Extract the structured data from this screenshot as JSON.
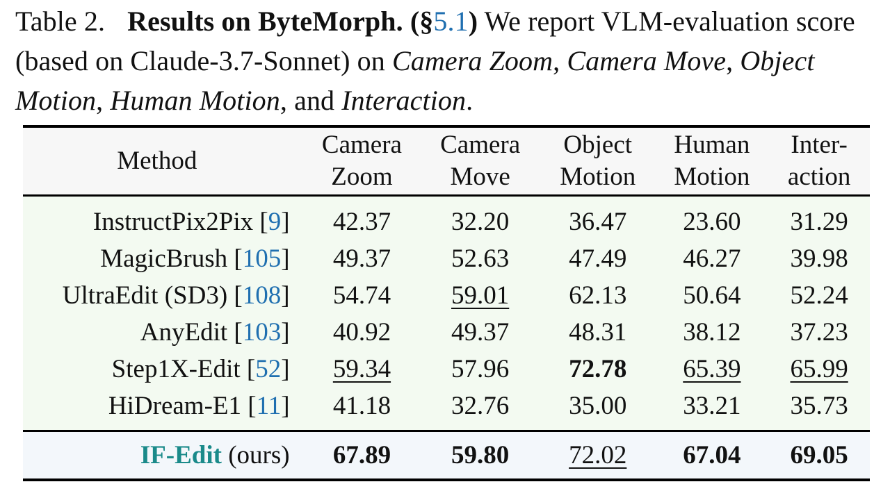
{
  "caption": {
    "label": "Table 2.",
    "title": "Results on ByteMorph.",
    "section_open": "(§",
    "section_ref": "5.1",
    "section_close": ")",
    "text1": " We report VLM-evaluation score (based on Claude-3.7-Sonnet) on ",
    "cat1": "Camera Zoom",
    "sep1": ", ",
    "cat2": "Camera Move",
    "sep2": ", ",
    "cat3": "Object Motion",
    "sep3": ", ",
    "cat4": "Human Motion",
    "sep4": ", and ",
    "cat5": "Interaction",
    "end": "."
  },
  "table": {
    "header": {
      "method": "Method",
      "col1_line1": "Camera",
      "col1_line2": "Zoom",
      "col2_line1": "Camera",
      "col2_line2": "Move",
      "col3_line1": "Object",
      "col3_line2": "Motion",
      "col4_line1": "Human",
      "col4_line2": "Motion",
      "col5_line1": "Inter-",
      "col5_line2": "action"
    },
    "rows": [
      {
        "name": "InstructPix2Pix",
        "ref": "9",
        "values": [
          "42.37",
          "32.20",
          "36.47",
          "23.60",
          "31.29"
        ]
      },
      {
        "name": "MagicBrush",
        "ref": "105",
        "values": [
          "49.37",
          "52.63",
          "47.49",
          "46.27",
          "39.98"
        ]
      },
      {
        "name": "UltraEdit (SD3)",
        "ref": "108",
        "values": [
          "54.74",
          "59.01",
          "62.13",
          "50.64",
          "52.24"
        ]
      },
      {
        "name": "AnyEdit",
        "ref": "103",
        "values": [
          "40.92",
          "49.37",
          "48.31",
          "38.12",
          "37.23"
        ]
      },
      {
        "name": "Step1X-Edit",
        "ref": "52",
        "values": [
          "59.34",
          "57.96",
          "72.78",
          "65.39",
          "65.99"
        ]
      },
      {
        "name": "HiDream-E1",
        "ref": "11",
        "values": [
          "41.18",
          "32.76",
          "35.00",
          "33.21",
          "35.73"
        ]
      }
    ],
    "ours": {
      "name": "IF-Edit",
      "suffix": "(ours)",
      "values": [
        "67.89",
        "59.80",
        "72.02",
        "67.04",
        "69.05"
      ]
    },
    "colors": {
      "citation": "#1f6fb0",
      "ours_name": "#1a8a8a",
      "baseline_bg": "#f3faf1",
      "ours_bg": "#f3f7fb",
      "header_bg": "#f7f7f7"
    }
  }
}
